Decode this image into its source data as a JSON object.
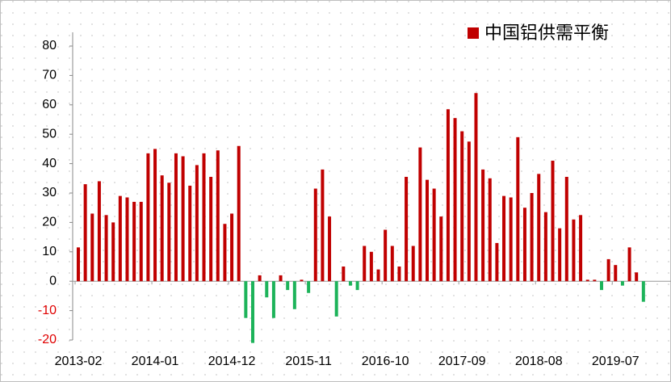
{
  "chart_data": {
    "type": "bar",
    "series": [
      {
        "name": "中国铝供需平衡",
        "color": "#c00000",
        "negative_color": "#1db35a",
        "values": [
          11.5,
          33,
          23,
          34,
          22.5,
          20,
          29,
          28.5,
          27,
          27,
          43.5,
          45,
          36,
          33.5,
          43.5,
          42.5,
          32.5,
          39.5,
          43.5,
          35.5,
          44.5,
          19.5,
          23,
          46,
          -12.5,
          -21,
          2,
          -5.5,
          -12.5,
          2,
          -3,
          -9.5,
          0.5,
          -4,
          31.5,
          38,
          22,
          -12,
          5,
          -1.5,
          -3,
          12,
          10,
          4,
          17.5,
          12,
          5,
          35.5,
          12,
          45.5,
          34.5,
          31.5,
          22,
          58.5,
          55.5,
          51,
          47.5,
          64,
          38,
          35,
          13,
          29,
          28.5,
          49,
          25,
          30,
          36.5,
          23.5,
          41,
          18,
          35.5,
          21,
          22.5,
          0.5,
          0.5,
          -3,
          7.5,
          5.5,
          -1.5,
          11.5,
          3,
          -7
        ]
      }
    ],
    "categories": [
      "2013-02",
      null,
      null,
      null,
      null,
      null,
      null,
      null,
      null,
      null,
      null,
      "2014-01",
      null,
      null,
      null,
      null,
      null,
      null,
      null,
      null,
      null,
      null,
      "2014-12",
      null,
      null,
      null,
      null,
      null,
      null,
      null,
      null,
      null,
      null,
      "2015-11",
      null,
      null,
      null,
      null,
      null,
      null,
      null,
      null,
      null,
      null,
      "2016-10",
      null,
      null,
      null,
      null,
      null,
      null,
      null,
      null,
      null,
      null,
      "2017-09",
      null,
      null,
      null,
      null,
      null,
      null,
      null,
      null,
      null,
      null,
      "2018-08",
      null,
      null,
      null,
      null,
      null,
      null,
      null,
      null,
      null,
      null,
      "2019-07",
      null,
      null,
      null,
      null
    ],
    "ylim": [
      -20,
      80
    ],
    "yticks": [
      -20,
      -10,
      0,
      10,
      20,
      30,
      40,
      50,
      60,
      70,
      80
    ],
    "negative_tick_color": "#e00000",
    "legend": "top-right"
  }
}
